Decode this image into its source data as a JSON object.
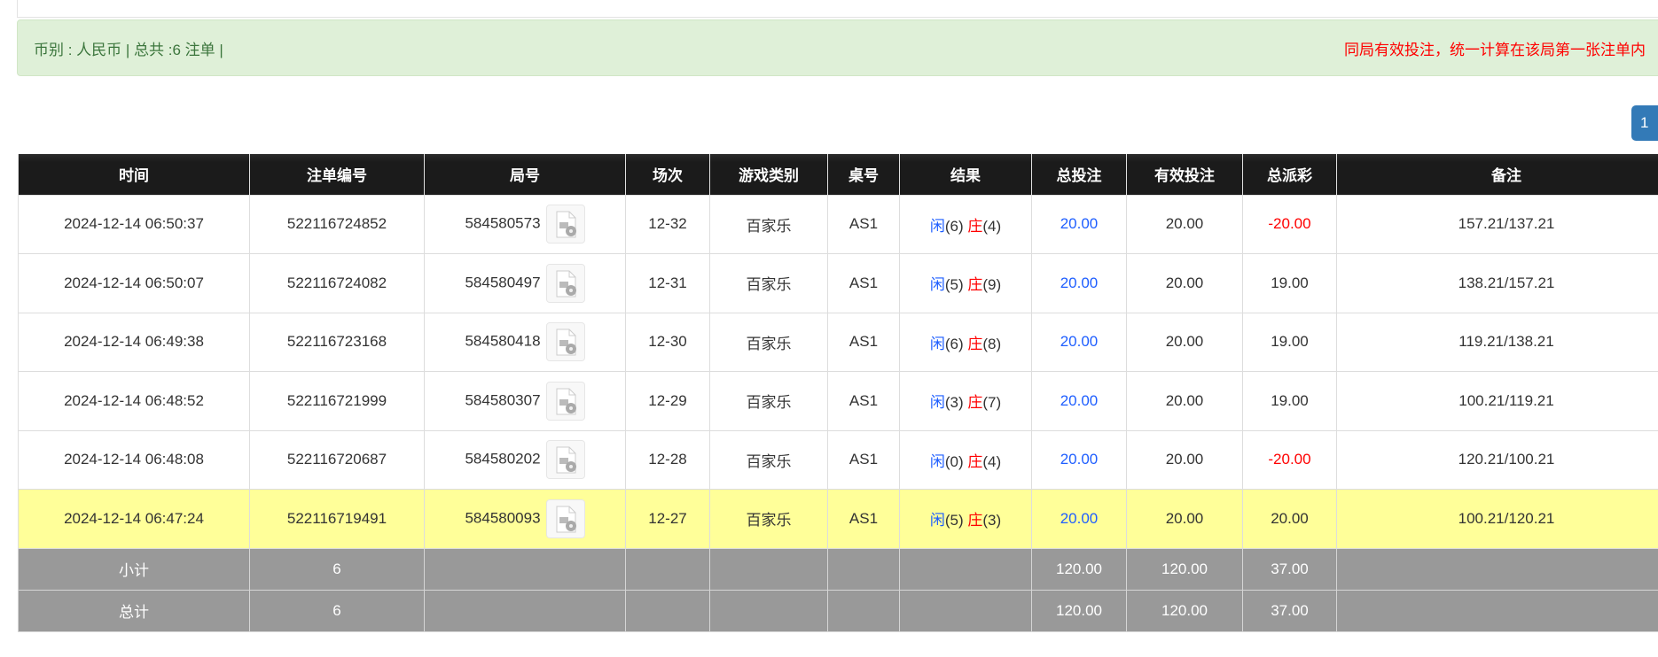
{
  "alert": {
    "summary": "币别 : 人民币 | 总共 :6 注单 |",
    "notice": "同局有效投注，统一计算在该局第一张注单内"
  },
  "pagination": {
    "current": "1"
  },
  "table": {
    "headers": [
      "时间",
      "注单编号",
      "局号",
      "场次",
      "游戏类别",
      "桌号",
      "结果",
      "总投注",
      "有效投注",
      "总派彩",
      "备注"
    ],
    "rows": [
      {
        "time": "2024-12-14 06:50:37",
        "bet_id": "522116724852",
        "round": "584580573",
        "session": "12-32",
        "game": "百家乐",
        "table": "AS1",
        "player_label": "闲",
        "player": "(6)",
        "banker_label": "庄",
        "banker": "(4)",
        "total_bet": "20.00",
        "valid_bet": "20.00",
        "payout": "-20.00",
        "payout_negative": true,
        "note": "157.21/137.21"
      },
      {
        "time": "2024-12-14 06:50:07",
        "bet_id": "522116724082",
        "round": "584580497",
        "session": "12-31",
        "game": "百家乐",
        "table": "AS1",
        "player_label": "闲",
        "player": "(5)",
        "banker_label": "庄",
        "banker": "(9)",
        "total_bet": "20.00",
        "valid_bet": "20.00",
        "payout": "19.00",
        "payout_negative": false,
        "note": "138.21/157.21"
      },
      {
        "time": "2024-12-14 06:49:38",
        "bet_id": "522116723168",
        "round": "584580418",
        "session": "12-30",
        "game": "百家乐",
        "table": "AS1",
        "player_label": "闲",
        "player": "(6)",
        "banker_label": "庄",
        "banker": "(8)",
        "total_bet": "20.00",
        "valid_bet": "20.00",
        "payout": "19.00",
        "payout_negative": false,
        "note": "119.21/138.21"
      },
      {
        "time": "2024-12-14 06:48:52",
        "bet_id": "522116721999",
        "round": "584580307",
        "session": "12-29",
        "game": "百家乐",
        "table": "AS1",
        "player_label": "闲",
        "player": "(3)",
        "banker_label": "庄",
        "banker": "(7)",
        "total_bet": "20.00",
        "valid_bet": "20.00",
        "payout": "19.00",
        "payout_negative": false,
        "note": "100.21/119.21"
      },
      {
        "time": "2024-12-14 06:48:08",
        "bet_id": "522116720687",
        "round": "584580202",
        "session": "12-28",
        "game": "百家乐",
        "table": "AS1",
        "player_label": "闲",
        "player": "(0)",
        "banker_label": "庄",
        "banker": "(4)",
        "total_bet": "20.00",
        "valid_bet": "20.00",
        "payout": "-20.00",
        "payout_negative": true,
        "note": "120.21/100.21"
      },
      {
        "time": "2024-12-14 06:47:24",
        "bet_id": "522116719491",
        "round": "584580093",
        "session": "12-27",
        "game": "百家乐",
        "table": "AS1",
        "player_label": "闲",
        "player": "(5)",
        "banker_label": "庄",
        "banker": "(3)",
        "total_bet": "20.00",
        "valid_bet": "20.00",
        "payout": "20.00",
        "payout_negative": false,
        "note": "100.21/120.21",
        "highlighted": true
      }
    ],
    "subtotal": {
      "label": "小计",
      "count": "6",
      "total_bet": "120.00",
      "valid_bet": "120.00",
      "payout": "37.00"
    },
    "total": {
      "label": "总计",
      "count": "6",
      "total_bet": "120.00",
      "valid_bet": "120.00",
      "payout": "37.00"
    }
  },
  "colors": {
    "highlight_row": "#ffff99",
    "player": "#1e5eff",
    "banker": "#ff0000",
    "negative": "#ff0000",
    "header_bg": "#1c1c1c",
    "summary_bg": "#999999"
  },
  "icons": {
    "round_detail": "video-file-icon"
  }
}
